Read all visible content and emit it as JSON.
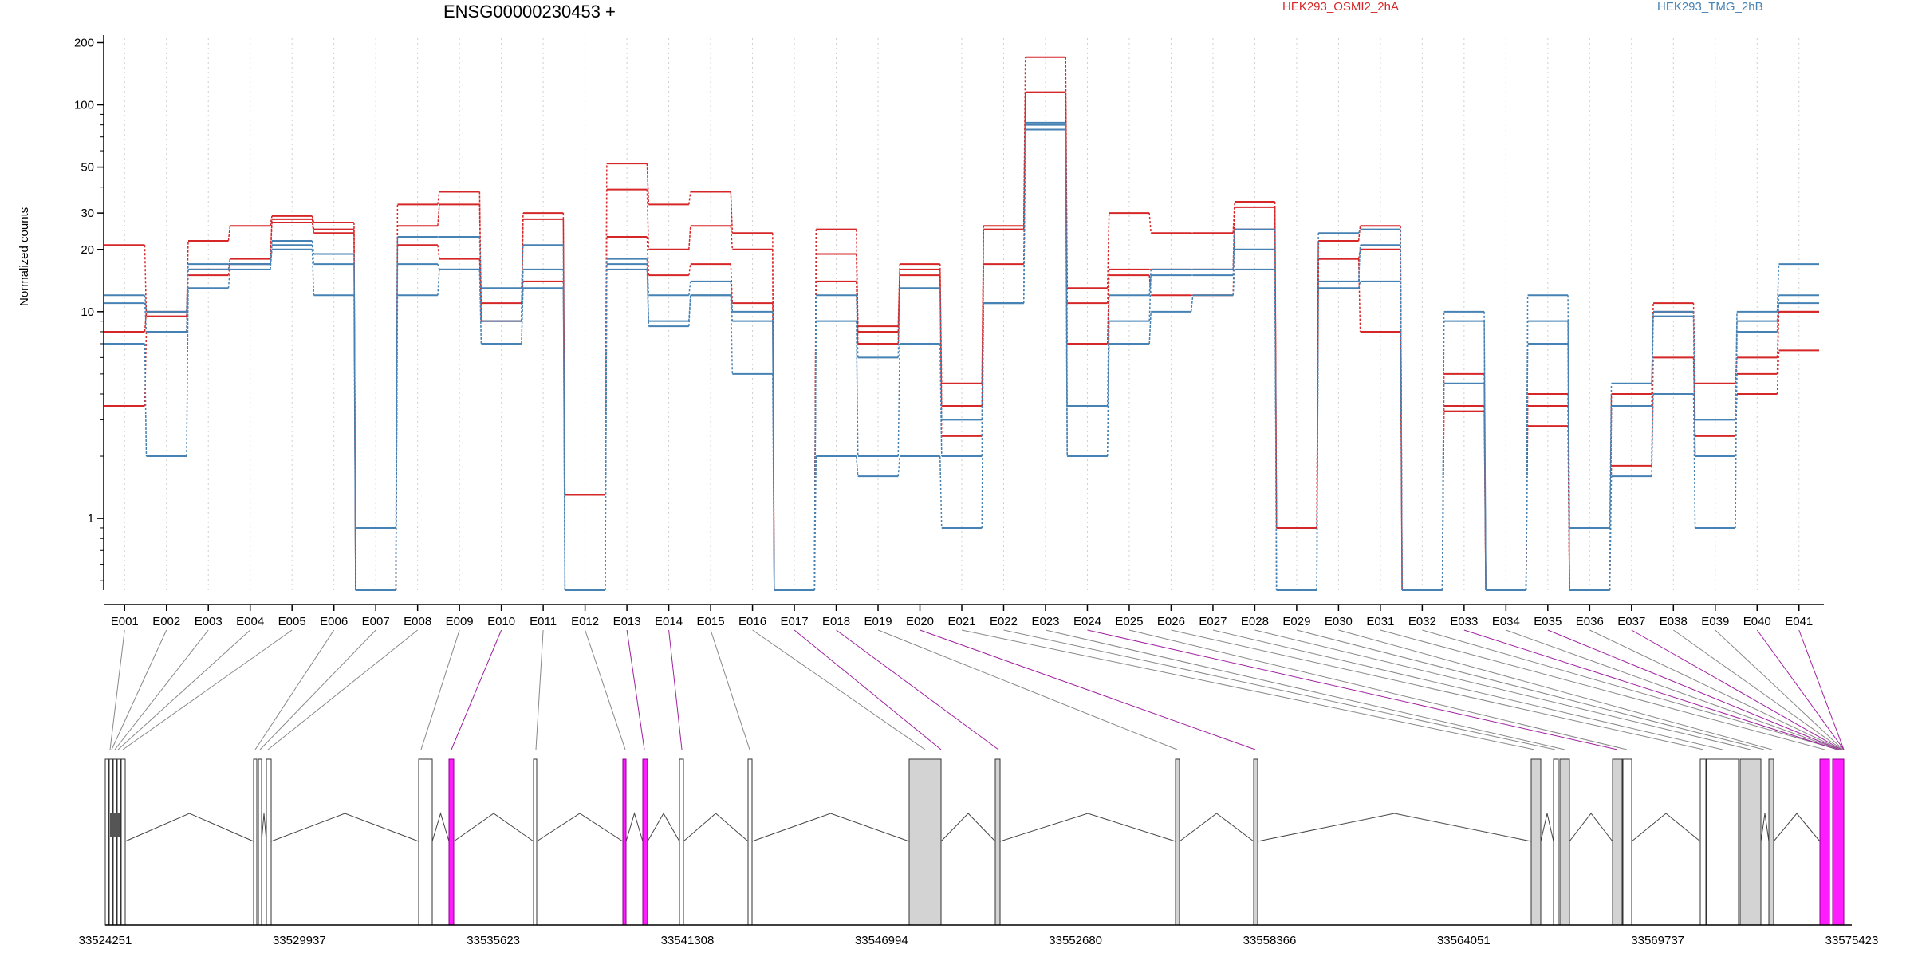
{
  "chart_data": {
    "type": "line",
    "title": "ENSG00000230453 +",
    "ylabel": "Normalized counts",
    "yscale": "log",
    "ylim": [
      0.45,
      210
    ],
    "yticks": [
      1,
      10,
      20,
      30,
      50,
      100,
      200
    ],
    "grid": "vertical-dotted",
    "legend_position": "top",
    "categories": [
      "E001",
      "E002",
      "E003",
      "E004",
      "E005",
      "E006",
      "E007",
      "E008",
      "E009",
      "E010",
      "E011",
      "E012",
      "E013",
      "E014",
      "E015",
      "E016",
      "E017",
      "E018",
      "E019",
      "E020",
      "E021",
      "E022",
      "E023",
      "E024",
      "E025",
      "E026",
      "E027",
      "E028",
      "E029",
      "E030",
      "E031",
      "E032",
      "E033",
      "E034",
      "E035",
      "E036",
      "E037",
      "E038",
      "E039",
      "E040",
      "E041"
    ],
    "series": [
      {
        "name": "HEK293_OSMI2_2hA",
        "color": "#d62728",
        "replicates": [
          [
            21,
            9.5,
            22,
            26,
            29,
            27,
            0.45,
            33,
            38,
            9,
            30,
            1.3,
            52,
            33,
            38,
            24,
            0.45,
            25,
            8.5,
            17,
            4.5,
            26,
            170,
            13,
            30,
            24,
            24,
            34,
            0.9,
            22,
            26,
            0.45,
            5,
            0.45,
            4,
            0.45,
            4,
            11,
            4.5,
            6,
            10
          ],
          [
            8,
            10,
            16,
            18,
            28,
            25,
            0.45,
            26,
            33,
            9,
            28,
            1.3,
            39,
            20,
            26,
            20,
            0.45,
            19,
            8,
            16,
            3.5,
            25,
            115,
            11,
            16,
            16,
            16,
            32,
            0.9,
            18,
            20,
            0.45,
            3.5,
            0.45,
            3.5,
            0.45,
            3.5,
            10,
            2,
            5,
            10
          ],
          [
            3.5,
            8,
            15,
            17,
            27,
            24,
            0.45,
            21,
            18,
            11,
            14,
            1.3,
            23,
            15,
            17,
            11,
            0.45,
            14,
            7,
            15,
            2.5,
            17,
            115,
            7,
            15,
            12,
            12,
            25,
            0.9,
            18,
            8,
            0.45,
            3.3,
            0.45,
            2.8,
            0.45,
            1.8,
            6,
            2.5,
            4,
            6.5
          ]
        ]
      },
      {
        "name": "HEK293_TMG_2hB",
        "color": "#4682b4",
        "replicates": [
          [
            12,
            10,
            17,
            17,
            22,
            19,
            0.9,
            23,
            23,
            13,
            21,
            0.45,
            18,
            12,
            14,
            10,
            0.45,
            12,
            6,
            13,
            3,
            11,
            82,
            3.5,
            12,
            16,
            16,
            25,
            0.45,
            24,
            25,
            0.45,
            10,
            0.45,
            12,
            0.9,
            4.5,
            10,
            3,
            10,
            17
          ],
          [
            11,
            8,
            16,
            17,
            21,
            17,
            0.45,
            17,
            16,
            9,
            16,
            0.45,
            17,
            9,
            12,
            9,
            0.45,
            9,
            2,
            7,
            2,
            11,
            80,
            2,
            9,
            15,
            15,
            20,
            0.45,
            14,
            21,
            0.45,
            9,
            0.45,
            9,
            0.45,
            3.5,
            9.5,
            2,
            9,
            12
          ],
          [
            7,
            2,
            13,
            16,
            20,
            12,
            0.45,
            12,
            16,
            7,
            13,
            0.45,
            16,
            8.5,
            12,
            5,
            0.45,
            2,
            1.6,
            2,
            0.9,
            11,
            76,
            2,
            7,
            10,
            12,
            16,
            0.45,
            13,
            14,
            0.45,
            4.5,
            0.45,
            7,
            0.45,
            1.6,
            4,
            0.9,
            8,
            11
          ]
        ]
      }
    ],
    "genomic_axis_labels": [
      "33524251",
      "33529937",
      "33535623",
      "33541308",
      "33546994",
      "33552680",
      "33558366",
      "33564051",
      "33569737",
      "33575423"
    ],
    "highlighted_exons": [
      "E010",
      "E013",
      "E014",
      "E017",
      "E018",
      "E020",
      "E024",
      "E033",
      "E035",
      "E037",
      "E040",
      "E041"
    ],
    "exon_colors": {
      "normal": "#ffffff",
      "shaded": "#d3d3d3",
      "highlight": "#ff1cff"
    }
  }
}
